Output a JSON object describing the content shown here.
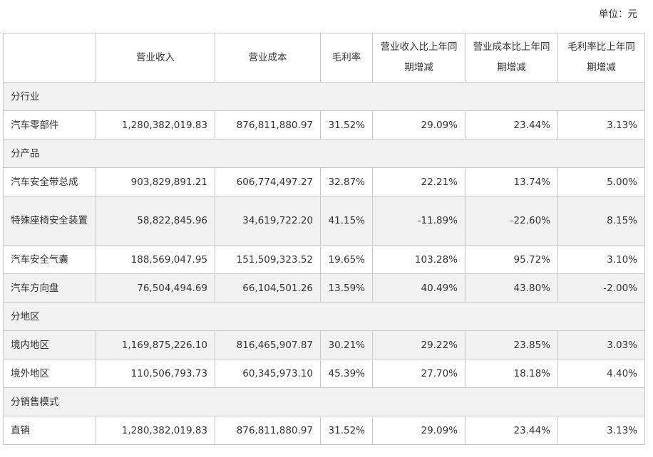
{
  "unit_label": "单位：元",
  "headers": {
    "blank": "",
    "revenue": "营业收入",
    "cost": "营业成本",
    "gross_margin": "毛利率",
    "revenue_change": "营业收入比上年同期增减",
    "cost_change": "营业成本比上年同期增减",
    "margin_change": "毛利率比上年同期增减"
  },
  "rows": [
    {
      "type": "section",
      "label": "分行业"
    },
    {
      "type": "data",
      "name": "汽车零部件",
      "revenue": "1,280,382,019.83",
      "cost": "876,811,880.97",
      "margin": "31.52%",
      "revenue_change": "29.09%",
      "cost_change": "23.44%",
      "margin_change": "3.13%"
    },
    {
      "type": "section",
      "label": "分产品"
    },
    {
      "type": "data",
      "name": "汽车安全带总成",
      "revenue": "903,829,891.21",
      "cost": "606,774,497.27",
      "margin": "32.87%",
      "revenue_change": "22.21%",
      "cost_change": "13.74%",
      "margin_change": "5.00%"
    },
    {
      "type": "data",
      "name": "特殊座椅安全装置",
      "revenue": "58,822,845.96",
      "cost": "34,619,722.20",
      "margin": "41.15%",
      "revenue_change": "-11.89%",
      "cost_change": "-22.60%",
      "margin_change": "8.15%"
    },
    {
      "type": "data",
      "name": "汽车安全气囊",
      "revenue": "188,569,047.95",
      "cost": "151,509,323.52",
      "margin": "19.65%",
      "revenue_change": "103.28%",
      "cost_change": "95.72%",
      "margin_change": "3.10%"
    },
    {
      "type": "data",
      "name": "汽车方向盘",
      "revenue": "76,504,494.69",
      "cost": "66,104,501.26",
      "margin": "13.59%",
      "revenue_change": "40.49%",
      "cost_change": "43.80%",
      "margin_change": "-2.00%"
    },
    {
      "type": "section",
      "label": "分地区"
    },
    {
      "type": "data",
      "name": "境内地区",
      "revenue": "1,169,875,226.10",
      "cost": "816,465,907.87",
      "margin": "30.21%",
      "revenue_change": "29.22%",
      "cost_change": "23.85%",
      "margin_change": "3.03%"
    },
    {
      "type": "data",
      "name": "境外地区",
      "revenue": "110,506,793.73",
      "cost": "60,345,973.10",
      "margin": "45.39%",
      "revenue_change": "27.70%",
      "cost_change": "18.18%",
      "margin_change": "4.40%"
    },
    {
      "type": "section",
      "label": "分销售模式"
    },
    {
      "type": "data",
      "name": "直销",
      "revenue": "1,280,382,019.83",
      "cost": "876,811,880.97",
      "margin": "31.52%",
      "revenue_change": "29.09%",
      "cost_change": "23.44%",
      "margin_change": "3.13%"
    }
  ]
}
